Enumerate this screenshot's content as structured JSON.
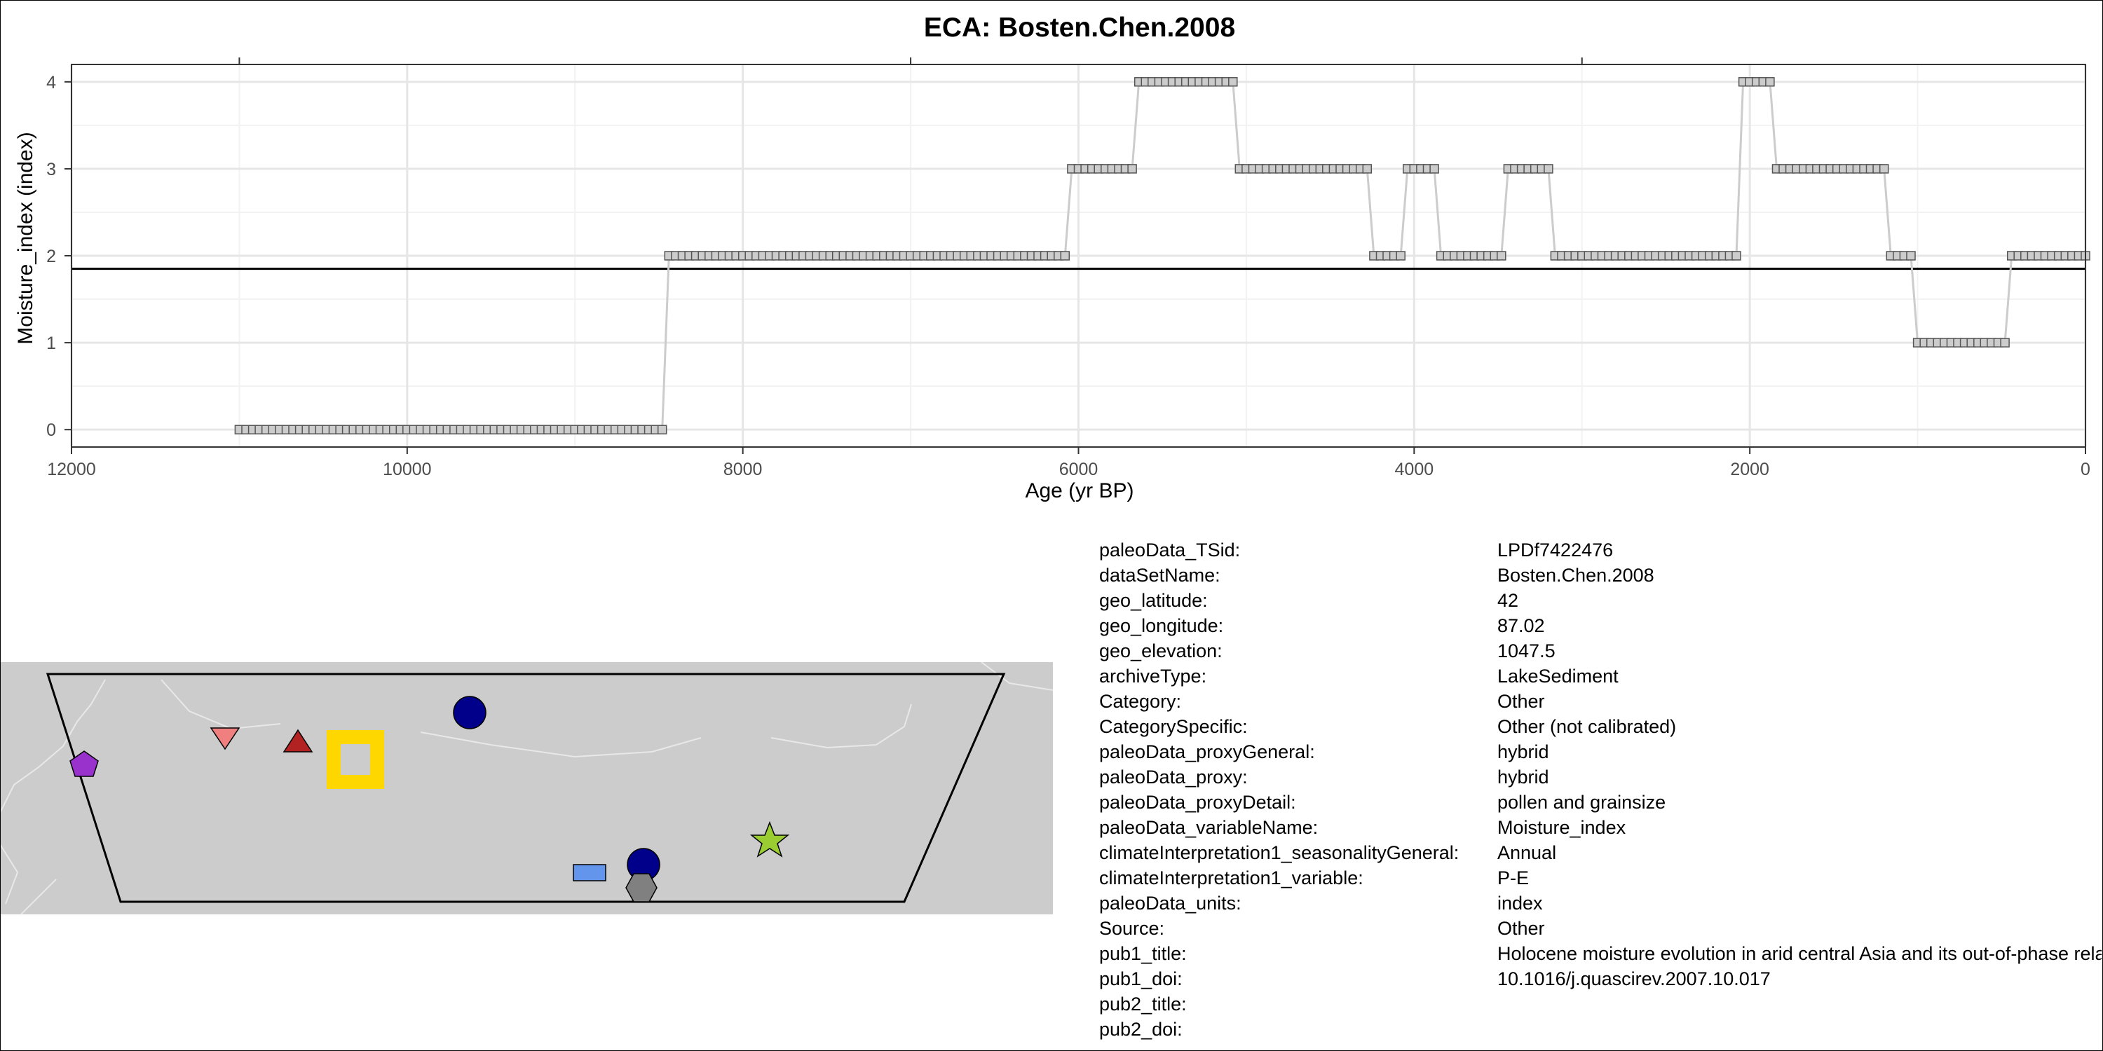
{
  "chart_data": {
    "type": "line",
    "title": "ECA: Bosten.Chen.2008",
    "xlabel": "Age (yr BP)",
    "ylabel": "Moisture_index (index)",
    "xlim": [
      12000,
      0
    ],
    "ylim": [
      -0.2,
      4.2
    ],
    "x_reversed": true,
    "xticks": [
      12000,
      10000,
      8000,
      6000,
      4000,
      2000,
      0
    ],
    "yticks": [
      0,
      1,
      2,
      3,
      4
    ],
    "grid": true,
    "reference_line": 1.85,
    "line_color": "#cccccc",
    "marker": "square",
    "marker_fill": "#cccccc",
    "series": [
      {
        "segments": [
          {
            "value": 0,
            "from": 11000,
            "to": 8480
          },
          {
            "value": 2,
            "from": 8440,
            "to": 6080
          },
          {
            "value": 3,
            "from": 6040,
            "to": 5680
          },
          {
            "value": 4,
            "from": 5640,
            "to": 5080
          },
          {
            "value": 3,
            "from": 5040,
            "to": 4280
          },
          {
            "value": 2,
            "from": 4240,
            "to": 4080
          },
          {
            "value": 3,
            "from": 4040,
            "to": 3880
          },
          {
            "value": 2,
            "from": 3840,
            "to": 3480
          },
          {
            "value": 3,
            "from": 3440,
            "to": 3200
          },
          {
            "value": 2,
            "from": 3160,
            "to": 2080
          },
          {
            "value": 4,
            "from": 2040,
            "to": 1880
          },
          {
            "value": 3,
            "from": 1840,
            "to": 1200
          },
          {
            "value": 2,
            "from": 1160,
            "to": 1040
          },
          {
            "value": 1,
            "from": 1000,
            "to": 480
          },
          {
            "value": 2,
            "from": 440,
            "to": 0
          }
        ],
        "step": 40
      }
    ]
  },
  "map": {
    "land_color": "#cccccc",
    "border_color": "#e8e8e8",
    "frame_color": "#000000",
    "markers": [
      {
        "shape": "pentagon",
        "color": "#9932cc"
      },
      {
        "shape": "triangle-down",
        "color": "#f08080"
      },
      {
        "shape": "triangle-up",
        "color": "#b22222"
      },
      {
        "shape": "square-ring",
        "color": "#ffd700",
        "highlight": true
      },
      {
        "shape": "circle",
        "color": "#00008b"
      },
      {
        "shape": "circle",
        "color": "#00008b"
      },
      {
        "shape": "rectangle",
        "color": "#6495ed"
      },
      {
        "shape": "hexagon",
        "color": "#808080"
      },
      {
        "shape": "star",
        "color": "#9acd32"
      }
    ]
  },
  "metadata": [
    {
      "key": "paleoData_TSid:",
      "value": "LPDf7422476"
    },
    {
      "key": "dataSetName:",
      "value": "Bosten.Chen.2008"
    },
    {
      "key": "geo_latitude:",
      "value": "42"
    },
    {
      "key": "geo_longitude:",
      "value": "87.02"
    },
    {
      "key": "geo_elevation:",
      "value": "1047.5"
    },
    {
      "key": "archiveType:",
      "value": "LakeSediment"
    },
    {
      "key": "Category:",
      "value": "Other"
    },
    {
      "key": "CategorySpecific:",
      "value": "Other (not calibrated)"
    },
    {
      "key": "paleoData_proxyGeneral:",
      "value": "hybrid"
    },
    {
      "key": "paleoData_proxy:",
      "value": "hybrid"
    },
    {
      "key": "paleoData_proxyDetail:",
      "value": "pollen and grainsize"
    },
    {
      "key": "paleoData_variableName:",
      "value": "Moisture_index"
    },
    {
      "key": "climateInterpretation1_seasonalityGeneral:",
      "value": "Annual"
    },
    {
      "key": "climateInterpretation1_variable:",
      "value": "P-E"
    },
    {
      "key": "paleoData_units:",
      "value": "index"
    },
    {
      "key": "Source:",
      "value": "Other"
    },
    {
      "key": "pub1_title:",
      "value": "Holocene moisture evolution in arid central Asia and its out-of-phase relationship with Asian monsoon history"
    },
    {
      "key": "pub1_doi:",
      "value": "10.1016/j.quascirev.2007.10.017"
    },
    {
      "key": "pub2_title:",
      "value": ""
    },
    {
      "key": "pub2_doi:",
      "value": ""
    }
  ]
}
